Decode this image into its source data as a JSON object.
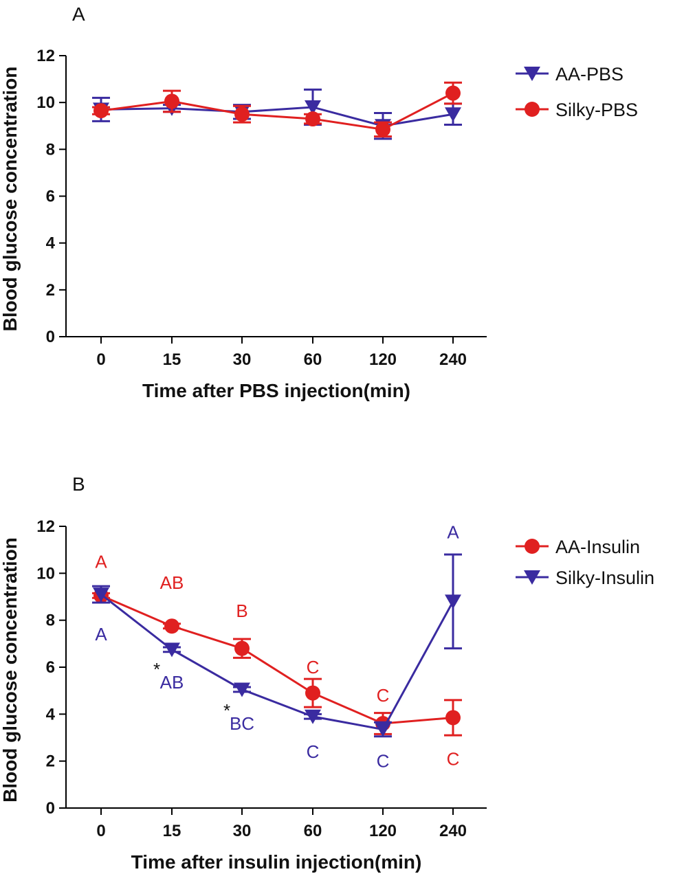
{
  "chart_data": [
    {
      "type": "line",
      "panel_label": "A",
      "xlabel": "Time after PBS injection(min)",
      "ylabel": "Blood glucose concentration",
      "categories": [
        "0",
        "15",
        "30",
        "60",
        "120",
        "240"
      ],
      "ylim": [
        0,
        12
      ],
      "yticks": [
        "0",
        "2",
        "4",
        "6",
        "8",
        "10",
        "12"
      ],
      "legend_position": "top-right",
      "series": [
        {
          "name": "AA-PBS",
          "marker": "triangle-down",
          "color": "#3a2ba0",
          "values": [
            9.7,
            9.75,
            9.6,
            9.8,
            9.0,
            9.5
          ],
          "errors": [
            0.5,
            0.15,
            0.3,
            0.75,
            0.55,
            0.45
          ],
          "annotations": []
        },
        {
          "name": "Silky-PBS",
          "marker": "circle",
          "color": "#e02020",
          "values": [
            9.65,
            10.05,
            9.5,
            9.3,
            8.85,
            10.4
          ],
          "errors": [
            0.15,
            0.45,
            0.35,
            0.2,
            0.3,
            0.45
          ],
          "annotations": []
        }
      ]
    },
    {
      "type": "line",
      "panel_label": "B",
      "xlabel": "Time after insulin injection(min)",
      "ylabel": "Blood glucose concentration",
      "categories": [
        "0",
        "15",
        "30",
        "60",
        "120",
        "240"
      ],
      "ylim": [
        0,
        12
      ],
      "yticks": [
        "0",
        "2",
        "4",
        "6",
        "8",
        "10",
        "12"
      ],
      "legend_position": "top-right",
      "series": [
        {
          "name": "AA-Insulin",
          "marker": "circle",
          "color": "#e02020",
          "values": [
            9.05,
            7.75,
            6.8,
            4.9,
            3.6,
            3.85
          ],
          "errors": [
            0.1,
            0.1,
            0.4,
            0.6,
            0.45,
            0.75
          ],
          "annotations": [
            {
              "text": "A",
              "x": 0,
              "y": 10.5,
              "star": false
            },
            {
              "text": "AB",
              "x": 1,
              "y": 9.6,
              "star": false
            },
            {
              "text": "B",
              "x": 2,
              "y": 8.4,
              "star": false
            },
            {
              "text": "C",
              "x": 3,
              "y": 6.0,
              "star": false
            },
            {
              "text": "C",
              "x": 4,
              "y": 4.8,
              "star": false
            },
            {
              "text": "C",
              "x": 5,
              "y": 2.1,
              "star": false
            }
          ]
        },
        {
          "name": "Silky-Insulin",
          "marker": "triangle-down",
          "color": "#3a2ba0",
          "values": [
            9.1,
            6.75,
            5.05,
            3.9,
            3.35,
            8.8
          ],
          "errors": [
            0.35,
            0.1,
            0.1,
            0.1,
            0.3,
            2.0
          ],
          "annotations": [
            {
              "text": "A",
              "x": 0,
              "y": 7.4,
              "star": false
            },
            {
              "text": "AB",
              "x": 1,
              "y": 5.35,
              "star": true
            },
            {
              "text": "BC",
              "x": 2,
              "y": 3.6,
              "star": true
            },
            {
              "text": "C",
              "x": 3,
              "y": 2.4,
              "star": false
            },
            {
              "text": "C",
              "x": 4,
              "y": 2.0,
              "star": false
            },
            {
              "text": "A",
              "x": 5,
              "y": 11.75,
              "star": false
            }
          ]
        }
      ]
    }
  ]
}
